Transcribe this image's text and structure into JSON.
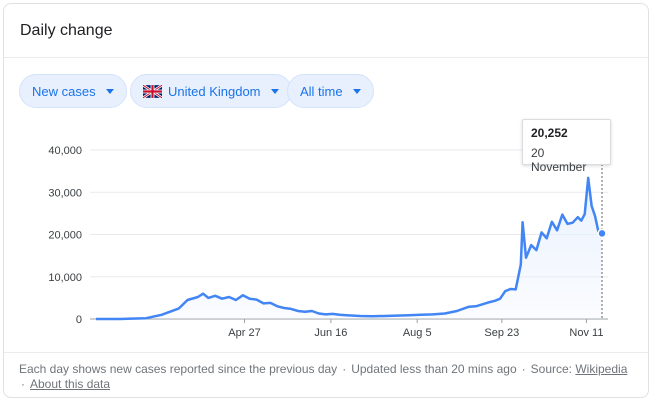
{
  "card": {
    "title": "Daily change"
  },
  "filters": {
    "metric": "New cases",
    "region": "United Kingdom",
    "period": "All time"
  },
  "tooltip": {
    "value": "20,252",
    "date": "20 November"
  },
  "footer": {
    "text": "Each day shows new cases reported since the previous day",
    "updated": "Updated less than 20 mins ago",
    "source_label": "Source:",
    "source_link": "Wikipedia",
    "about_link": "About this data",
    "separator": "·"
  },
  "chart_data": {
    "type": "area",
    "title": "",
    "xlabel": "",
    "ylabel": "",
    "ylim": [
      0,
      40000
    ],
    "yticks": [
      0,
      10000,
      20000,
      30000,
      40000
    ],
    "ytick_labels": [
      "0",
      "10,000",
      "20,000",
      "30,000",
      "40,000"
    ],
    "xticks": [
      "Apr 27",
      "Jun 16",
      "Aug 5",
      "Sep 23",
      "Nov 11"
    ],
    "grid": true,
    "line_color": "#4285f4",
    "fill_color": "#e8f0fe",
    "series": [
      {
        "x": [
          "Feb 1",
          "Feb 15",
          "Mar 1",
          "Mar 10",
          "Mar 20",
          "Mar 25",
          "Mar 31",
          "Apr 3",
          "Apr 6",
          "Apr 10",
          "Apr 14",
          "Apr 18",
          "Apr 22",
          "Apr 26",
          "Apr 30",
          "May 4",
          "May 8",
          "May 12",
          "May 16",
          "May 20",
          "May 24",
          "May 28",
          "Jun 1",
          "Jun 5",
          "Jun 9",
          "Jun 13",
          "Jun 17",
          "Jun 21",
          "Jun 25",
          "Jun 29",
          "Jul 3",
          "Jul 10",
          "Jul 17",
          "Jul 24",
          "Jul 31",
          "Aug 7",
          "Aug 14",
          "Aug 21",
          "Aug 28",
          "Sep 4",
          "Sep 8",
          "Sep 12",
          "Sep 16",
          "Sep 19",
          "Sep 22",
          "Sep 25",
          "Sep 28",
          "Oct 1",
          "Oct 4",
          "Oct 5",
          "Oct 7",
          "Oct 10",
          "Oct 13",
          "Oct 16",
          "Oct 19",
          "Oct 22",
          "Oct 25",
          "Oct 28",
          "Oct 31",
          "Nov 3",
          "Nov 6",
          "Nov 8",
          "Nov 10",
          "Nov 12",
          "Nov 14",
          "Nov 16",
          "Nov 18",
          "Nov 20"
        ],
        "values": [
          0,
          0,
          200,
          1000,
          2500,
          4500,
          5200,
          6000,
          5000,
          5500,
          4800,
          5200,
          4500,
          5600,
          4800,
          4600,
          3700,
          3800,
          3000,
          2600,
          2400,
          1900,
          1700,
          1900,
          1300,
          1100,
          1200,
          1000,
          900,
          800,
          700,
          650,
          700,
          800,
          900,
          1000,
          1100,
          1300,
          1900,
          2900,
          3000,
          3500,
          4000,
          4300,
          4800,
          6600,
          7100,
          7000,
          12900,
          22900,
          14500,
          17500,
          16300,
          20500,
          19100,
          23000,
          21000,
          24700,
          22500,
          22800,
          24100,
          23300,
          24800,
          33400,
          26800,
          24300,
          20600,
          20252
        ]
      }
    ]
  }
}
